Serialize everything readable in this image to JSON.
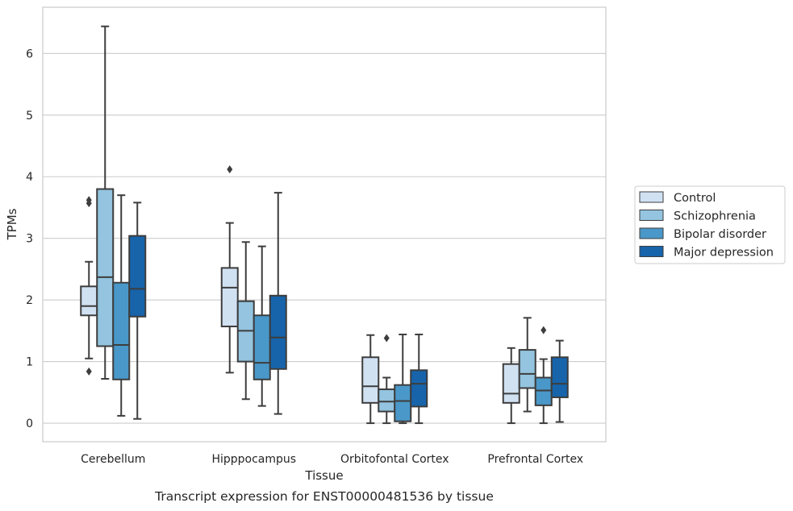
{
  "caption": "Transcript expression for ENST00000481536 by tissue",
  "colors": {
    "series": [
      "#d0e1f2",
      "#94c4df",
      "#4a98c9",
      "#1764ab"
    ],
    "edge": "#3d3d3d",
    "grid": "#cccccc",
    "frame": "#cccccc"
  },
  "chart_data": {
    "type": "boxplot",
    "xlabel": "Tissue",
    "ylabel": "TPMs",
    "ylim": [
      -0.3,
      6.75
    ],
    "yticks": [
      "0",
      "1",
      "2",
      "3",
      "4",
      "5",
      "6"
    ],
    "grid": "horizontal",
    "legend_position": "right",
    "categories": [
      "Cerebellum",
      "Hipppocampus",
      "Orbitofontal Cortex",
      "Prefrontal Cortex"
    ],
    "series": [
      {
        "name": "Control",
        "boxes": [
          {
            "whislo": 1.05,
            "q1": 1.75,
            "med": 1.9,
            "q3": 2.22,
            "whishi": 2.62,
            "fliers": [
              3.57,
              3.62,
              0.84
            ]
          },
          {
            "whislo": 0.82,
            "q1": 1.57,
            "med": 2.2,
            "q3": 2.52,
            "whishi": 3.25,
            "fliers": [
              4.12
            ]
          },
          {
            "whislo": 0.0,
            "q1": 0.33,
            "med": 0.6,
            "q3": 1.07,
            "whishi": 1.43,
            "fliers": []
          },
          {
            "whislo": 0.0,
            "q1": 0.33,
            "med": 0.48,
            "q3": 0.96,
            "whishi": 1.22,
            "fliers": []
          }
        ]
      },
      {
        "name": "Schizophrenia",
        "boxes": [
          {
            "whislo": 0.72,
            "q1": 1.25,
            "med": 2.37,
            "q3": 3.8,
            "whishi": 6.44,
            "fliers": []
          },
          {
            "whislo": 0.39,
            "q1": 1.0,
            "med": 1.5,
            "q3": 1.98,
            "whishi": 2.94,
            "fliers": []
          },
          {
            "whislo": 0.0,
            "q1": 0.19,
            "med": 0.35,
            "q3": 0.55,
            "whishi": 0.74,
            "fliers": [
              1.38
            ]
          },
          {
            "whislo": 0.19,
            "q1": 0.57,
            "med": 0.8,
            "q3": 1.19,
            "whishi": 1.71,
            "fliers": []
          }
        ]
      },
      {
        "name": "Bipolar disorder",
        "boxes": [
          {
            "whislo": 0.12,
            "q1": 0.71,
            "med": 1.27,
            "q3": 2.28,
            "whishi": 3.7,
            "fliers": []
          },
          {
            "whislo": 0.28,
            "q1": 0.71,
            "med": 0.98,
            "q3": 1.75,
            "whishi": 2.87,
            "fliers": []
          },
          {
            "whislo": 0.0,
            "q1": 0.03,
            "med": 0.36,
            "q3": 0.62,
            "whishi": 1.44,
            "fliers": []
          },
          {
            "whislo": 0.0,
            "q1": 0.29,
            "med": 0.53,
            "q3": 0.74,
            "whishi": 1.04,
            "fliers": [
              1.51
            ]
          }
        ]
      },
      {
        "name": "Major depression",
        "boxes": [
          {
            "whislo": 0.07,
            "q1": 1.73,
            "med": 2.18,
            "q3": 3.04,
            "whishi": 3.58,
            "fliers": []
          },
          {
            "whislo": 0.15,
            "q1": 0.88,
            "med": 1.39,
            "q3": 2.07,
            "whishi": 3.74,
            "fliers": []
          },
          {
            "whislo": 0.0,
            "q1": 0.27,
            "med": 0.64,
            "q3": 0.86,
            "whishi": 1.44,
            "fliers": []
          },
          {
            "whislo": 0.02,
            "q1": 0.42,
            "med": 0.64,
            "q3": 1.07,
            "whishi": 1.34,
            "fliers": []
          }
        ]
      }
    ]
  }
}
